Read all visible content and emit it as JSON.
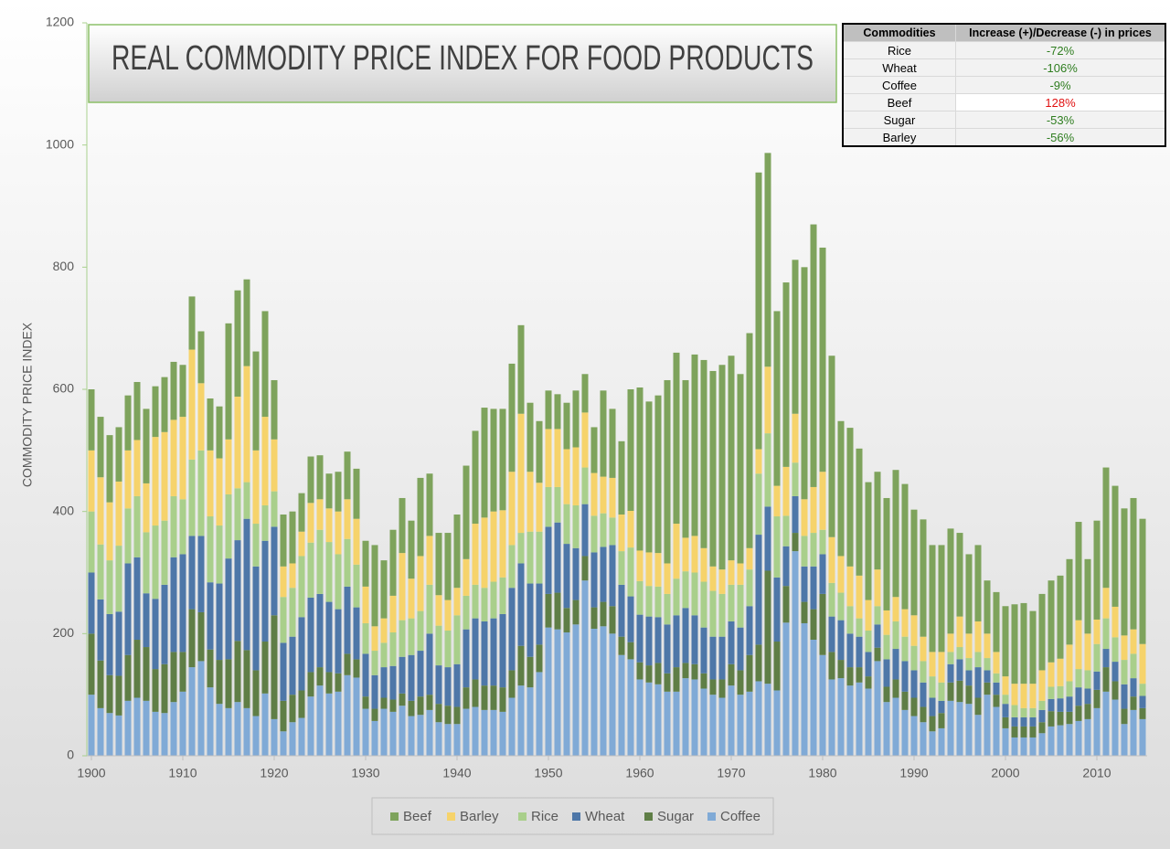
{
  "chart_data": {
    "type": "stacked_bar",
    "title": "REAL COMMODITY PRICE INDEX FOR FOOD PRODUCTS",
    "y_label": "COMMODITY PRICE INDEX",
    "x": [
      1900,
      1901,
      1902,
      1903,
      1904,
      1905,
      1906,
      1907,
      1908,
      1909,
      1910,
      1911,
      1912,
      1913,
      1914,
      1915,
      1916,
      1917,
      1918,
      1919,
      1920,
      1921,
      1922,
      1923,
      1924,
      1925,
      1926,
      1927,
      1928,
      1929,
      1930,
      1931,
      1932,
      1933,
      1934,
      1935,
      1936,
      1937,
      1938,
      1939,
      1940,
      1941,
      1942,
      1943,
      1944,
      1945,
      1946,
      1947,
      1948,
      1949,
      1950,
      1951,
      1952,
      1953,
      1954,
      1955,
      1956,
      1957,
      1958,
      1959,
      1960,
      1961,
      1962,
      1963,
      1964,
      1965,
      1966,
      1967,
      1968,
      1969,
      1970,
      1971,
      1972,
      1973,
      1974,
      1975,
      1976,
      1977,
      1978,
      1979,
      1980,
      1981,
      1982,
      1983,
      1984,
      1985,
      1986,
      1987,
      1988,
      1989,
      1990,
      1991,
      1992,
      1993,
      1994,
      1995,
      1996,
      1997,
      1998,
      1999,
      2000,
      2001,
      2002,
      2003,
      2004,
      2005,
      2006,
      2007,
      2008,
      2009,
      2010,
      2011,
      2012,
      2013,
      2014,
      2015
    ],
    "xlim": [
      1899.5,
      2015.5
    ],
    "xticks": [
      1900,
      1910,
      1920,
      1930,
      1940,
      1950,
      1960,
      1970,
      1980,
      1990,
      2000,
      2010
    ],
    "ylim": [
      0,
      1200
    ],
    "yticks": [
      0,
      200,
      400,
      600,
      800,
      1000,
      1200
    ],
    "series": [
      {
        "name": "Beef",
        "color": "#7ea35c",
        "values": [
          100,
          99,
          110,
          89,
          90,
          95,
          122,
          83,
          90,
          95,
          85,
          87,
          85,
          85,
          85,
          190,
          174,
          142,
          162,
          173,
          97,
          85,
          85,
          63,
          76,
          72,
          57,
          65,
          78,
          82,
          75,
          133,
          95,
          108,
          90,
          95,
          128,
          102,
          102,
          110,
          120,
          153,
          152,
          180,
          168,
          166,
          177,
          145,
          113,
          101,
          63,
          57,
          76,
          93,
          63,
          75,
          141,
          113,
          120,
          199,
          267,
          247,
          258,
          300,
          280,
          258,
          297,
          308,
          320,
          335,
          335,
          310,
          352,
          453,
          350,
          286,
          302,
          252,
          380,
          430,
          367,
          297,
          221,
          227,
          208,
          193,
          160,
          184,
          208,
          205,
          173,
          192,
          175,
          175,
          172,
          137,
          130,
          125,
          87,
          98,
          115,
          130,
          132,
          119,
          125,
          134,
          136,
          140,
          161,
          122,
          162,
          197,
          198,
          208,
          215,
          205
        ]
      },
      {
        "name": "Barley",
        "color": "#f6d36b",
        "values": [
          100,
          110,
          95,
          105,
          95,
          92,
          80,
          145,
          145,
          125,
          135,
          180,
          110,
          108,
          110,
          90,
          150,
          190,
          120,
          145,
          85,
          50,
          40,
          40,
          65,
          50,
          55,
          70,
          65,
          75,
          60,
          40,
          40,
          60,
          110,
          65,
          90,
          80,
          50,
          50,
          45,
          60,
          100,
          115,
          115,
          110,
          120,
          195,
          98,
          80,
          95,
          95,
          90,
          95,
          90,
          70,
          60,
          65,
          60,
          60,
          50,
          55,
          55,
          50,
          90,
          55,
          60,
          55,
          40,
          40,
          40,
          35,
          35,
          40,
          109,
          50,
          80,
          80,
          60,
          75,
          95,
          75,
          60,
          65,
          70,
          50,
          60,
          40,
          40,
          45,
          50,
          40,
          40,
          50,
          30,
          50,
          40,
          50,
          40,
          35,
          30,
          35,
          40,
          40,
          50,
          40,
          45,
          60,
          80,
          60,
          40,
          50,
          50,
          40,
          40,
          65
        ]
      },
      {
        "name": "Rice",
        "color": "#a9cf8b",
        "values": [
          100,
          90,
          88,
          108,
          90,
          100,
          100,
          120,
          105,
          100,
          90,
          125,
          140,
          108,
          95,
          105,
          85,
          60,
          70,
          58,
          58,
          75,
          80,
          100,
          90,
          105,
          98,
          90,
          78,
          70,
          50,
          40,
          40,
          55,
          60,
          60,
          65,
          80,
          65,
          60,
          80,
          55,
          55,
          55,
          60,
          60,
          70,
          50,
          85,
          85,
          65,
          58,
          65,
          70,
          60,
          60,
          55,
          45,
          55,
          80,
          55,
          50,
          50,
          50,
          60,
          60,
          70,
          75,
          75,
          70,
          60,
          70,
          60,
          100,
          120,
          100,
          50,
          55,
          50,
          55,
          40,
          55,
          45,
          45,
          30,
          35,
          30,
          40,
          45,
          40,
          40,
          35,
          35,
          30,
          20,
          20,
          20,
          25,
          20,
          15,
          15,
          20,
          15,
          15,
          15,
          20,
          20,
          25,
          30,
          30,
          45,
          50,
          40,
          40,
          40,
          20
        ]
      },
      {
        "name": "Wheat",
        "color": "#4e77a8",
        "values": [
          100,
          100,
          100,
          105,
          150,
          135,
          88,
          115,
          130,
          155,
          160,
          120,
          125,
          110,
          125,
          165,
          165,
          215,
          170,
          165,
          145,
          95,
          95,
          120,
          122,
          120,
          115,
          105,
          110,
          85,
          70,
          55,
          50,
          55,
          60,
          75,
          75,
          100,
          63,
          63,
          70,
          95,
          100,
          105,
          110,
          120,
          135,
          135,
          120,
          100,
          110,
          115,
          105,
          85,
          85,
          90,
          90,
          100,
          85,
          75,
          78,
          80,
          75,
          80,
          85,
          90,
          80,
          75,
          70,
          70,
          70,
          70,
          80,
          180,
          105,
          105,
          65,
          60,
          58,
          70,
          65,
          58,
          65,
          55,
          50,
          40,
          38,
          45,
          50,
          50,
          45,
          40,
          30,
          20,
          30,
          35,
          25,
          50,
          20,
          20,
          22,
          15,
          15,
          15,
          20,
          20,
          22,
          25,
          30,
          25,
          30,
          30,
          32,
          40,
          30,
          20
        ]
      },
      {
        "name": "Sugar",
        "color": "#5f7e46",
        "values": [
          100,
          78,
          62,
          65,
          75,
          95,
          88,
          70,
          80,
          82,
          65,
          95,
          80,
          62,
          72,
          80,
          100,
          95,
          75,
          85,
          170,
          50,
          45,
          45,
          40,
          30,
          35,
          30,
          35,
          30,
          20,
          20,
          18,
          20,
          20,
          25,
          30,
          25,
          30,
          30,
          28,
          35,
          45,
          40,
          40,
          40,
          45,
          65,
          50,
          45,
          55,
          60,
          40,
          40,
          40,
          35,
          40,
          45,
          30,
          28,
          28,
          28,
          35,
          30,
          40,
          25,
          25,
          25,
          25,
          30,
          35,
          40,
          60,
          60,
          185,
          80,
          60,
          30,
          35,
          50,
          100,
          45,
          30,
          30,
          25,
          20,
          22,
          25,
          30,
          30,
          30,
          25,
          25,
          25,
          30,
          35,
          30,
          28,
          20,
          20,
          18,
          18,
          18,
          18,
          18,
          25,
          22,
          20,
          25,
          25,
          30,
          40,
          30,
          25,
          22,
          18
        ]
      },
      {
        "name": "Coffee",
        "color": "#80aad6",
        "values": [
          100,
          78,
          70,
          66,
          90,
          95,
          90,
          72,
          70,
          88,
          105,
          145,
          155,
          112,
          85,
          78,
          88,
          78,
          65,
          102,
          60,
          40,
          55,
          62,
          97,
          115,
          102,
          105,
          132,
          128,
          77,
          57,
          77,
          72,
          82,
          65,
          67,
          75,
          55,
          52,
          52,
          77,
          80,
          75,
          75,
          72,
          95,
          115,
          112,
          137,
          210,
          207,
          202,
          215,
          287,
          208,
          212,
          200,
          165,
          158,
          125,
          120,
          117,
          105,
          105,
          127,
          125,
          110,
          100,
          95,
          115,
          100,
          105,
          122,
          118,
          107,
          218,
          335,
          217,
          190,
          165,
          125,
          127,
          115,
          120,
          110,
          155,
          88,
          95,
          75,
          65,
          55,
          40,
          45,
          90,
          88,
          85,
          67,
          100,
          80,
          45,
          30,
          30,
          30,
          37,
          48,
          50,
          52,
          57,
          60,
          78,
          105,
          92,
          52,
          75,
          60
        ]
      }
    ],
    "legend": "bottom",
    "grid": false
  },
  "table": {
    "headers": [
      "Commodities",
      "Increase (+)/Decrease (-) in prices"
    ],
    "rows": [
      [
        "Rice",
        "-72%"
      ],
      [
        "Wheat",
        "-106%"
      ],
      [
        "Coffee",
        "-9%"
      ],
      [
        "Beef",
        "128%"
      ],
      [
        "Sugar",
        "-53%"
      ],
      [
        "Barley",
        "-56%"
      ]
    ]
  }
}
